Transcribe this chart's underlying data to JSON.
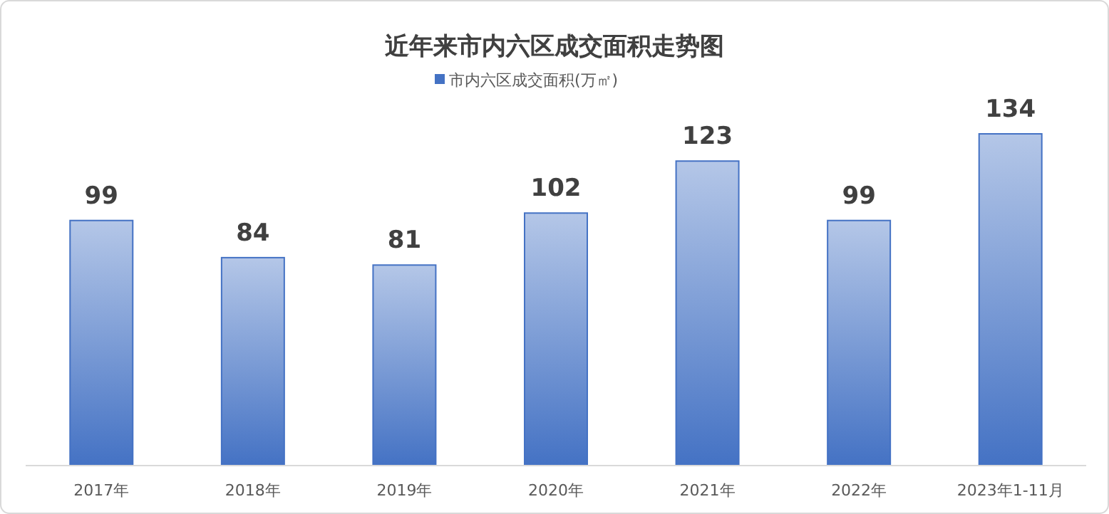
{
  "chart_data": {
    "type": "bar",
    "title": "近年来市内六区成交面积走势图",
    "categories": [
      "2017年",
      "2018年",
      "2019年",
      "2020年",
      "2021年",
      "2022年",
      "2023年1-11月"
    ],
    "series": [
      {
        "name": "市内六区成交面积(万㎡)",
        "color": "#4472c4",
        "values": [
          99,
          84,
          81,
          102,
          123,
          99,
          134
        ]
      }
    ],
    "data_labels": true,
    "legend": "top",
    "grid": false
  }
}
